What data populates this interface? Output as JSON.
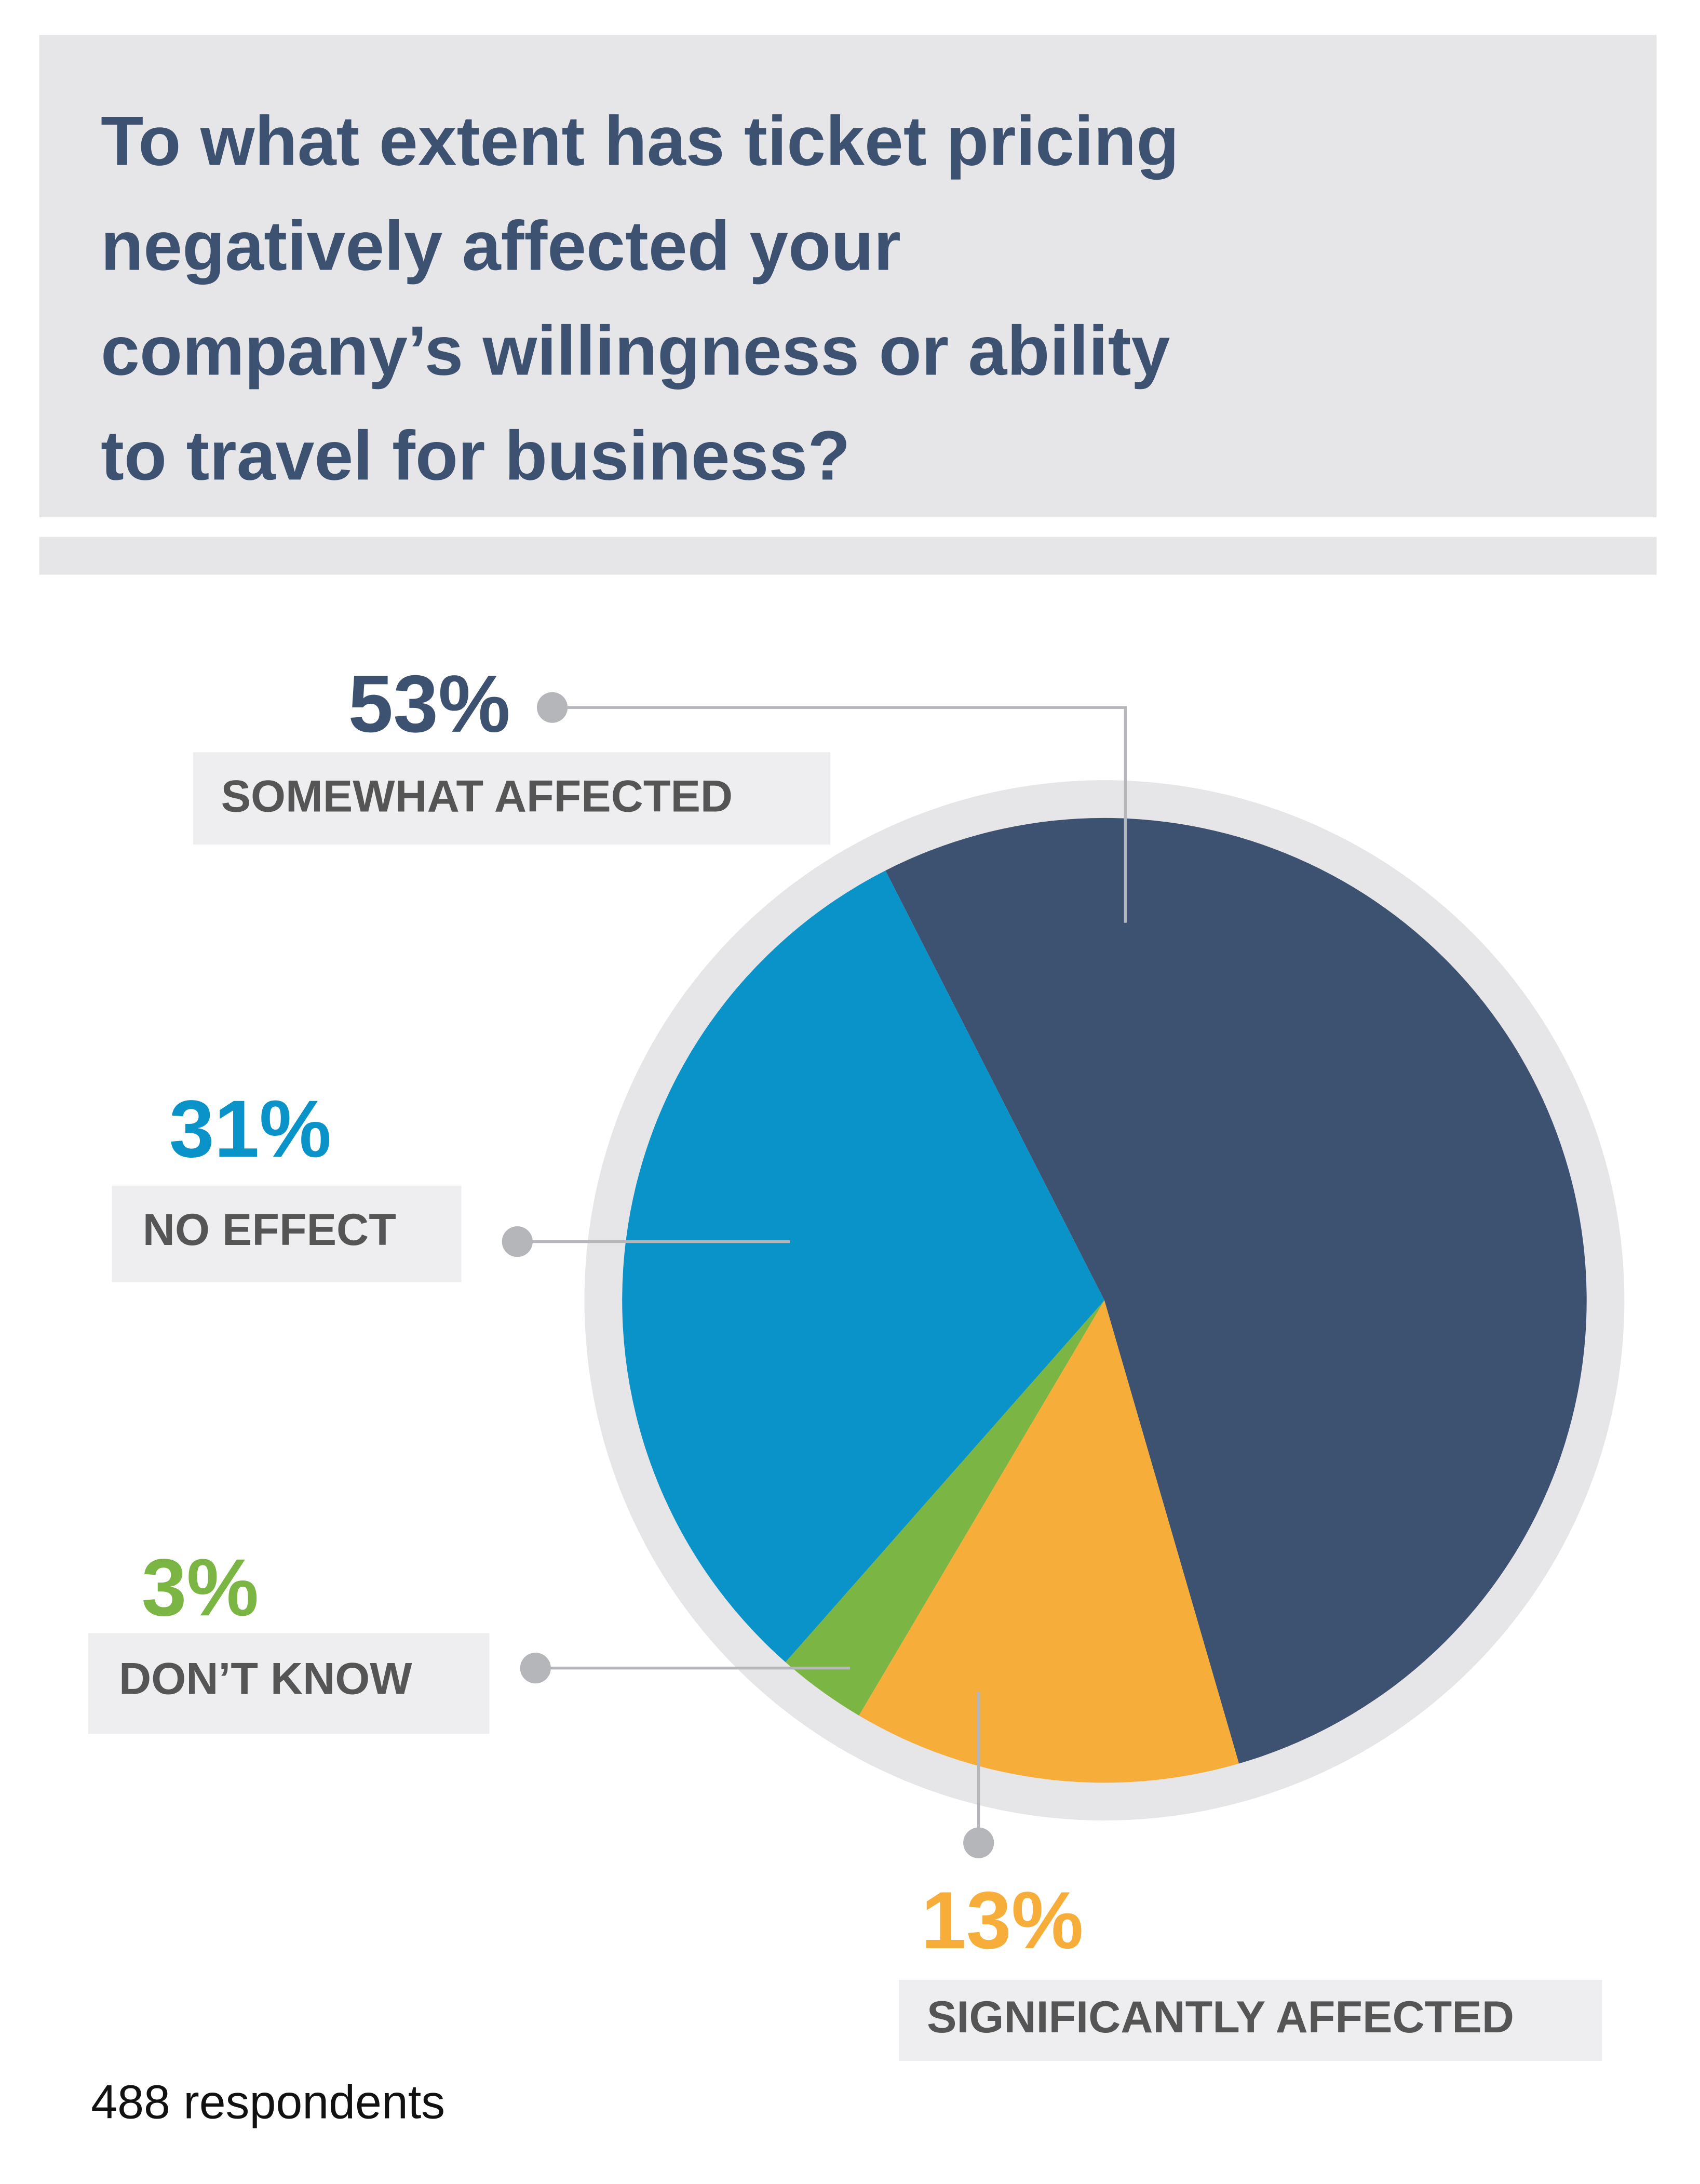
{
  "chart_data": {
    "type": "pie",
    "title": [
      "To what extent has ticket pricing",
      "negatively affected your",
      "company’s willingness or ability",
      "to travel for business?"
    ],
    "categories": [
      "SOMEWHAT AFFECTED",
      "SIGNIFICANTLY AFFECTED",
      "DON’T KNOW",
      "NO EFFECT"
    ],
    "values": [
      53,
      13,
      3,
      31
    ],
    "value_labels": [
      "53%",
      "13%",
      "3%",
      "31%"
    ],
    "colors": [
      "#3d5170",
      "#f6ad3a",
      "#7bb543",
      "#0a93c9"
    ],
    "note": "488 respondents"
  }
}
